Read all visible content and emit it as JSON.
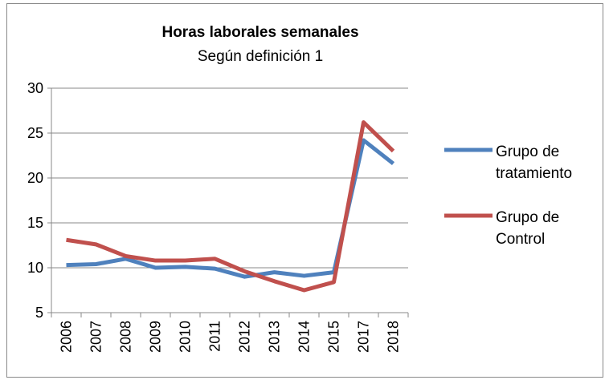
{
  "chart_data": {
    "type": "line",
    "title": "Horas laborales semanales",
    "subtitle": "Según definición 1",
    "categories": [
      "2006",
      "2007",
      "2008",
      "2009",
      "2010",
      "2011",
      "2012",
      "2013",
      "2014",
      "2015",
      "2017",
      "2018"
    ],
    "series": [
      {
        "name": "Grupo de tratamiento",
        "color": "#4f81bd",
        "values": [
          10.3,
          10.4,
          11.0,
          10.0,
          10.1,
          9.9,
          9.0,
          9.5,
          9.1,
          9.5,
          24.2,
          21.6
        ]
      },
      {
        "name": "Grupo de Control",
        "color": "#c0504d",
        "values": [
          13.1,
          12.6,
          11.3,
          10.8,
          10.8,
          11.0,
          9.6,
          8.5,
          7.5,
          8.4,
          26.2,
          23.0
        ]
      }
    ],
    "ylim": [
      5,
      30
    ],
    "yticks": [
      5,
      10,
      15,
      20,
      25,
      30
    ],
    "grid": true,
    "legend": "right"
  }
}
